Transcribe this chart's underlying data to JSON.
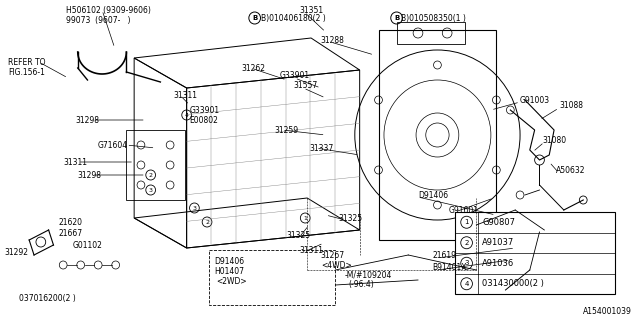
{
  "bg_color": "#ffffff",
  "diagram_number": "A154001039",
  "lc": "black",
  "lw": 0.5,
  "legend_entries": [
    {
      "num": "1",
      "text": "G90807"
    },
    {
      "num": "2",
      "text": "A91037"
    },
    {
      "num": "3",
      "text": "A91036"
    },
    {
      "num": "4",
      "text": "031430000(2 )"
    }
  ]
}
